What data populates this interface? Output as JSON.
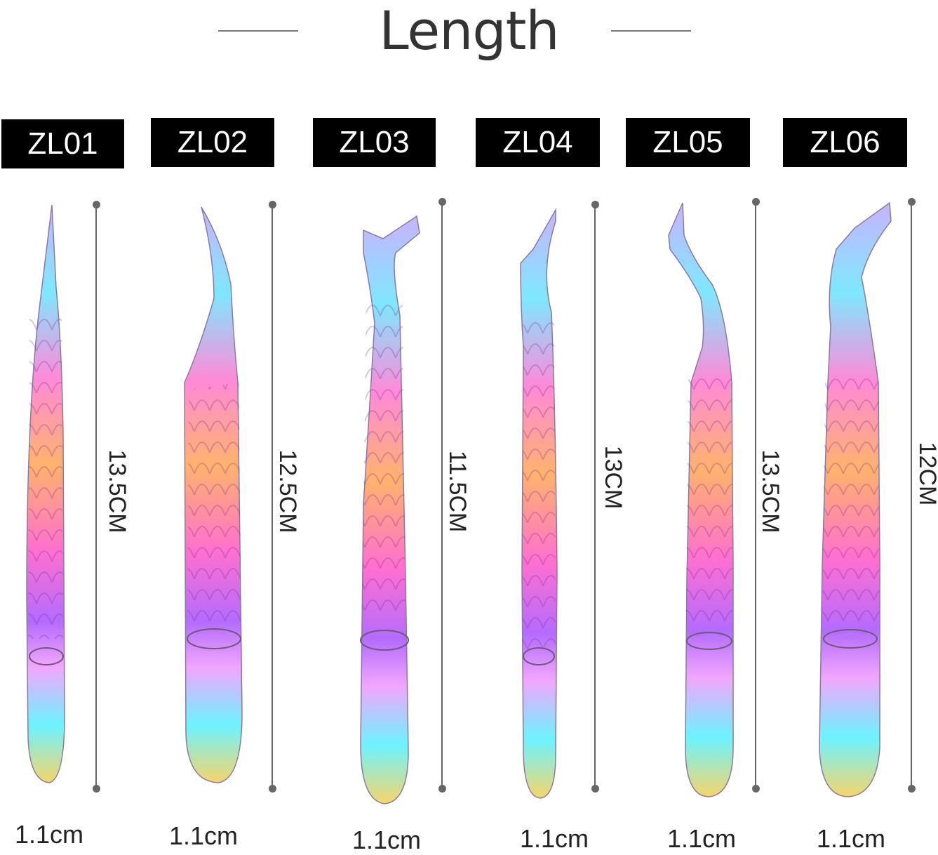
{
  "title": "Length",
  "products": [
    {
      "code": "ZL01",
      "length": "13.5CM",
      "width": "1.1cm"
    },
    {
      "code": "ZL02",
      "length": "12.5CM",
      "width": "1.1cm"
    },
    {
      "code": "ZL03",
      "length": "11.5CM",
      "width": "1.1cm"
    },
    {
      "code": "ZL04",
      "length": "13CM",
      "width": "1.1cm"
    },
    {
      "code": "ZL05",
      "length": "13.5CM",
      "width": "1.1cm"
    },
    {
      "code": "ZL06",
      "length": "12CM",
      "width": "1.1cm"
    }
  ],
  "colors": {
    "label_bg": "#000000",
    "label_text": "#ffffff",
    "measure_line": "#666666",
    "text": "#333333"
  }
}
